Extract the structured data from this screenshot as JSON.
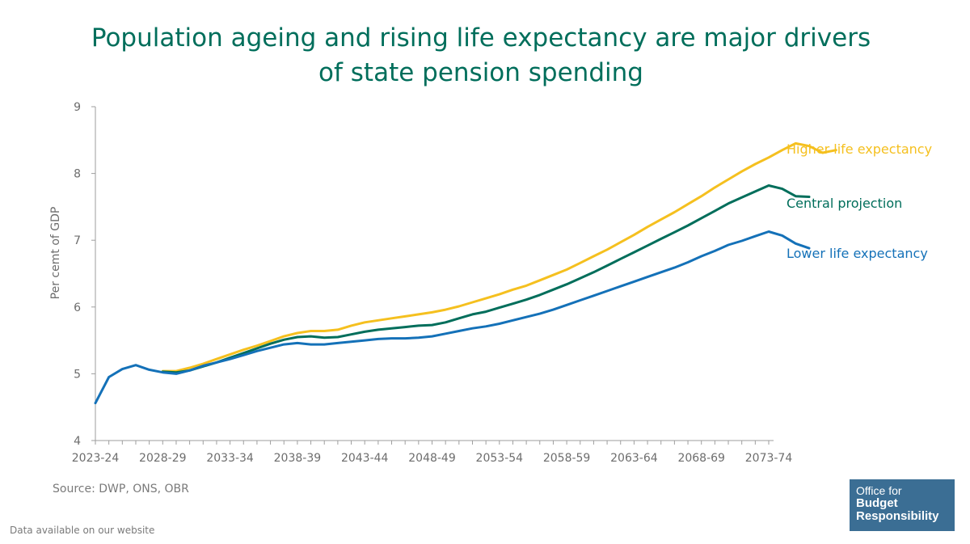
{
  "title": {
    "line1": "Population ageing and rising life expectancy are major drivers",
    "line2": "of state pension spending"
  },
  "source": "Source: DWP, ONS, OBR",
  "footnote": "Data available on our website",
  "logo": {
    "line1": "Office for",
    "line2": "Budget",
    "line3": "Responsibility"
  },
  "colors": {
    "higher": "#f5c01f",
    "central": "#006e5b",
    "lower": "#1471b8",
    "axis": "#9e9e9e",
    "text": "#6d6d6d"
  },
  "chart_data": {
    "type": "line",
    "title": "Population ageing and rising life expectancy are major drivers of state pension spending",
    "xlabel": "",
    "ylabel": "Per cemt of GDP",
    "ylim": [
      4,
      9
    ],
    "yticks": [
      4,
      5,
      6,
      7,
      8,
      9
    ],
    "xtick_labels": [
      "2023-24",
      "2028-29",
      "2033-34",
      "2038-39",
      "2043-44",
      "2048-49",
      "2053-54",
      "2058-59",
      "2063-64",
      "2068-69",
      "2073-74"
    ],
    "x_start_year": 2023,
    "x_end_year": 2073,
    "legend_placement": "right, inline labels at line ends",
    "series": [
      {
        "name": "Higher life expectancy",
        "color_key": "higher",
        "start_year": 2028,
        "values": [
          5.04,
          5.04,
          5.09,
          5.15,
          5.22,
          5.29,
          5.36,
          5.42,
          5.49,
          5.56,
          5.61,
          5.64,
          5.64,
          5.66,
          5.72,
          5.77,
          5.8,
          5.83,
          5.86,
          5.89,
          5.92,
          5.96,
          6.01,
          6.07,
          6.13,
          6.19,
          6.26,
          6.32,
          6.4,
          6.48,
          6.56,
          6.66,
          6.76,
          6.86,
          6.97,
          7.08,
          7.2,
          7.31,
          7.42,
          7.54,
          7.66,
          7.79,
          7.91,
          8.03,
          8.14,
          8.24,
          8.35,
          8.45,
          8.41,
          8.31,
          8.35
        ]
      },
      {
        "name": "Central projection",
        "color_key": "central",
        "start_year": 2028,
        "values": [
          5.03,
          5.02,
          5.05,
          5.11,
          5.17,
          5.24,
          5.31,
          5.38,
          5.45,
          5.51,
          5.55,
          5.56,
          5.54,
          5.55,
          5.59,
          5.63,
          5.66,
          5.68,
          5.7,
          5.72,
          5.73,
          5.77,
          5.83,
          5.89,
          5.93,
          5.99,
          6.05,
          6.11,
          6.18,
          6.26,
          6.34,
          6.43,
          6.52,
          6.62,
          6.72,
          6.82,
          6.92,
          7.02,
          7.12,
          7.22,
          7.33,
          7.44,
          7.55,
          7.64,
          7.73,
          7.82,
          7.77,
          7.66,
          7.65
        ]
      },
      {
        "name": "Lower life expectancy",
        "color_key": "lower",
        "start_year": 2023,
        "values": [
          4.56,
          4.95,
          5.07,
          5.13,
          5.06,
          5.02,
          5.0,
          5.05,
          5.12,
          5.17,
          5.22,
          5.28,
          5.34,
          5.39,
          5.44,
          5.46,
          5.44,
          5.44,
          5.46,
          5.48,
          5.5,
          5.52,
          5.53,
          5.53,
          5.54,
          5.56,
          5.6,
          5.64,
          5.68,
          5.71,
          5.75,
          5.8,
          5.85,
          5.9,
          5.96,
          6.03,
          6.1,
          6.17,
          6.24,
          6.31,
          6.38,
          6.45,
          6.52,
          6.59,
          6.67,
          6.76,
          6.84,
          6.93,
          6.99,
          7.06,
          7.13,
          7.07,
          6.95,
          6.88
        ]
      }
    ]
  }
}
